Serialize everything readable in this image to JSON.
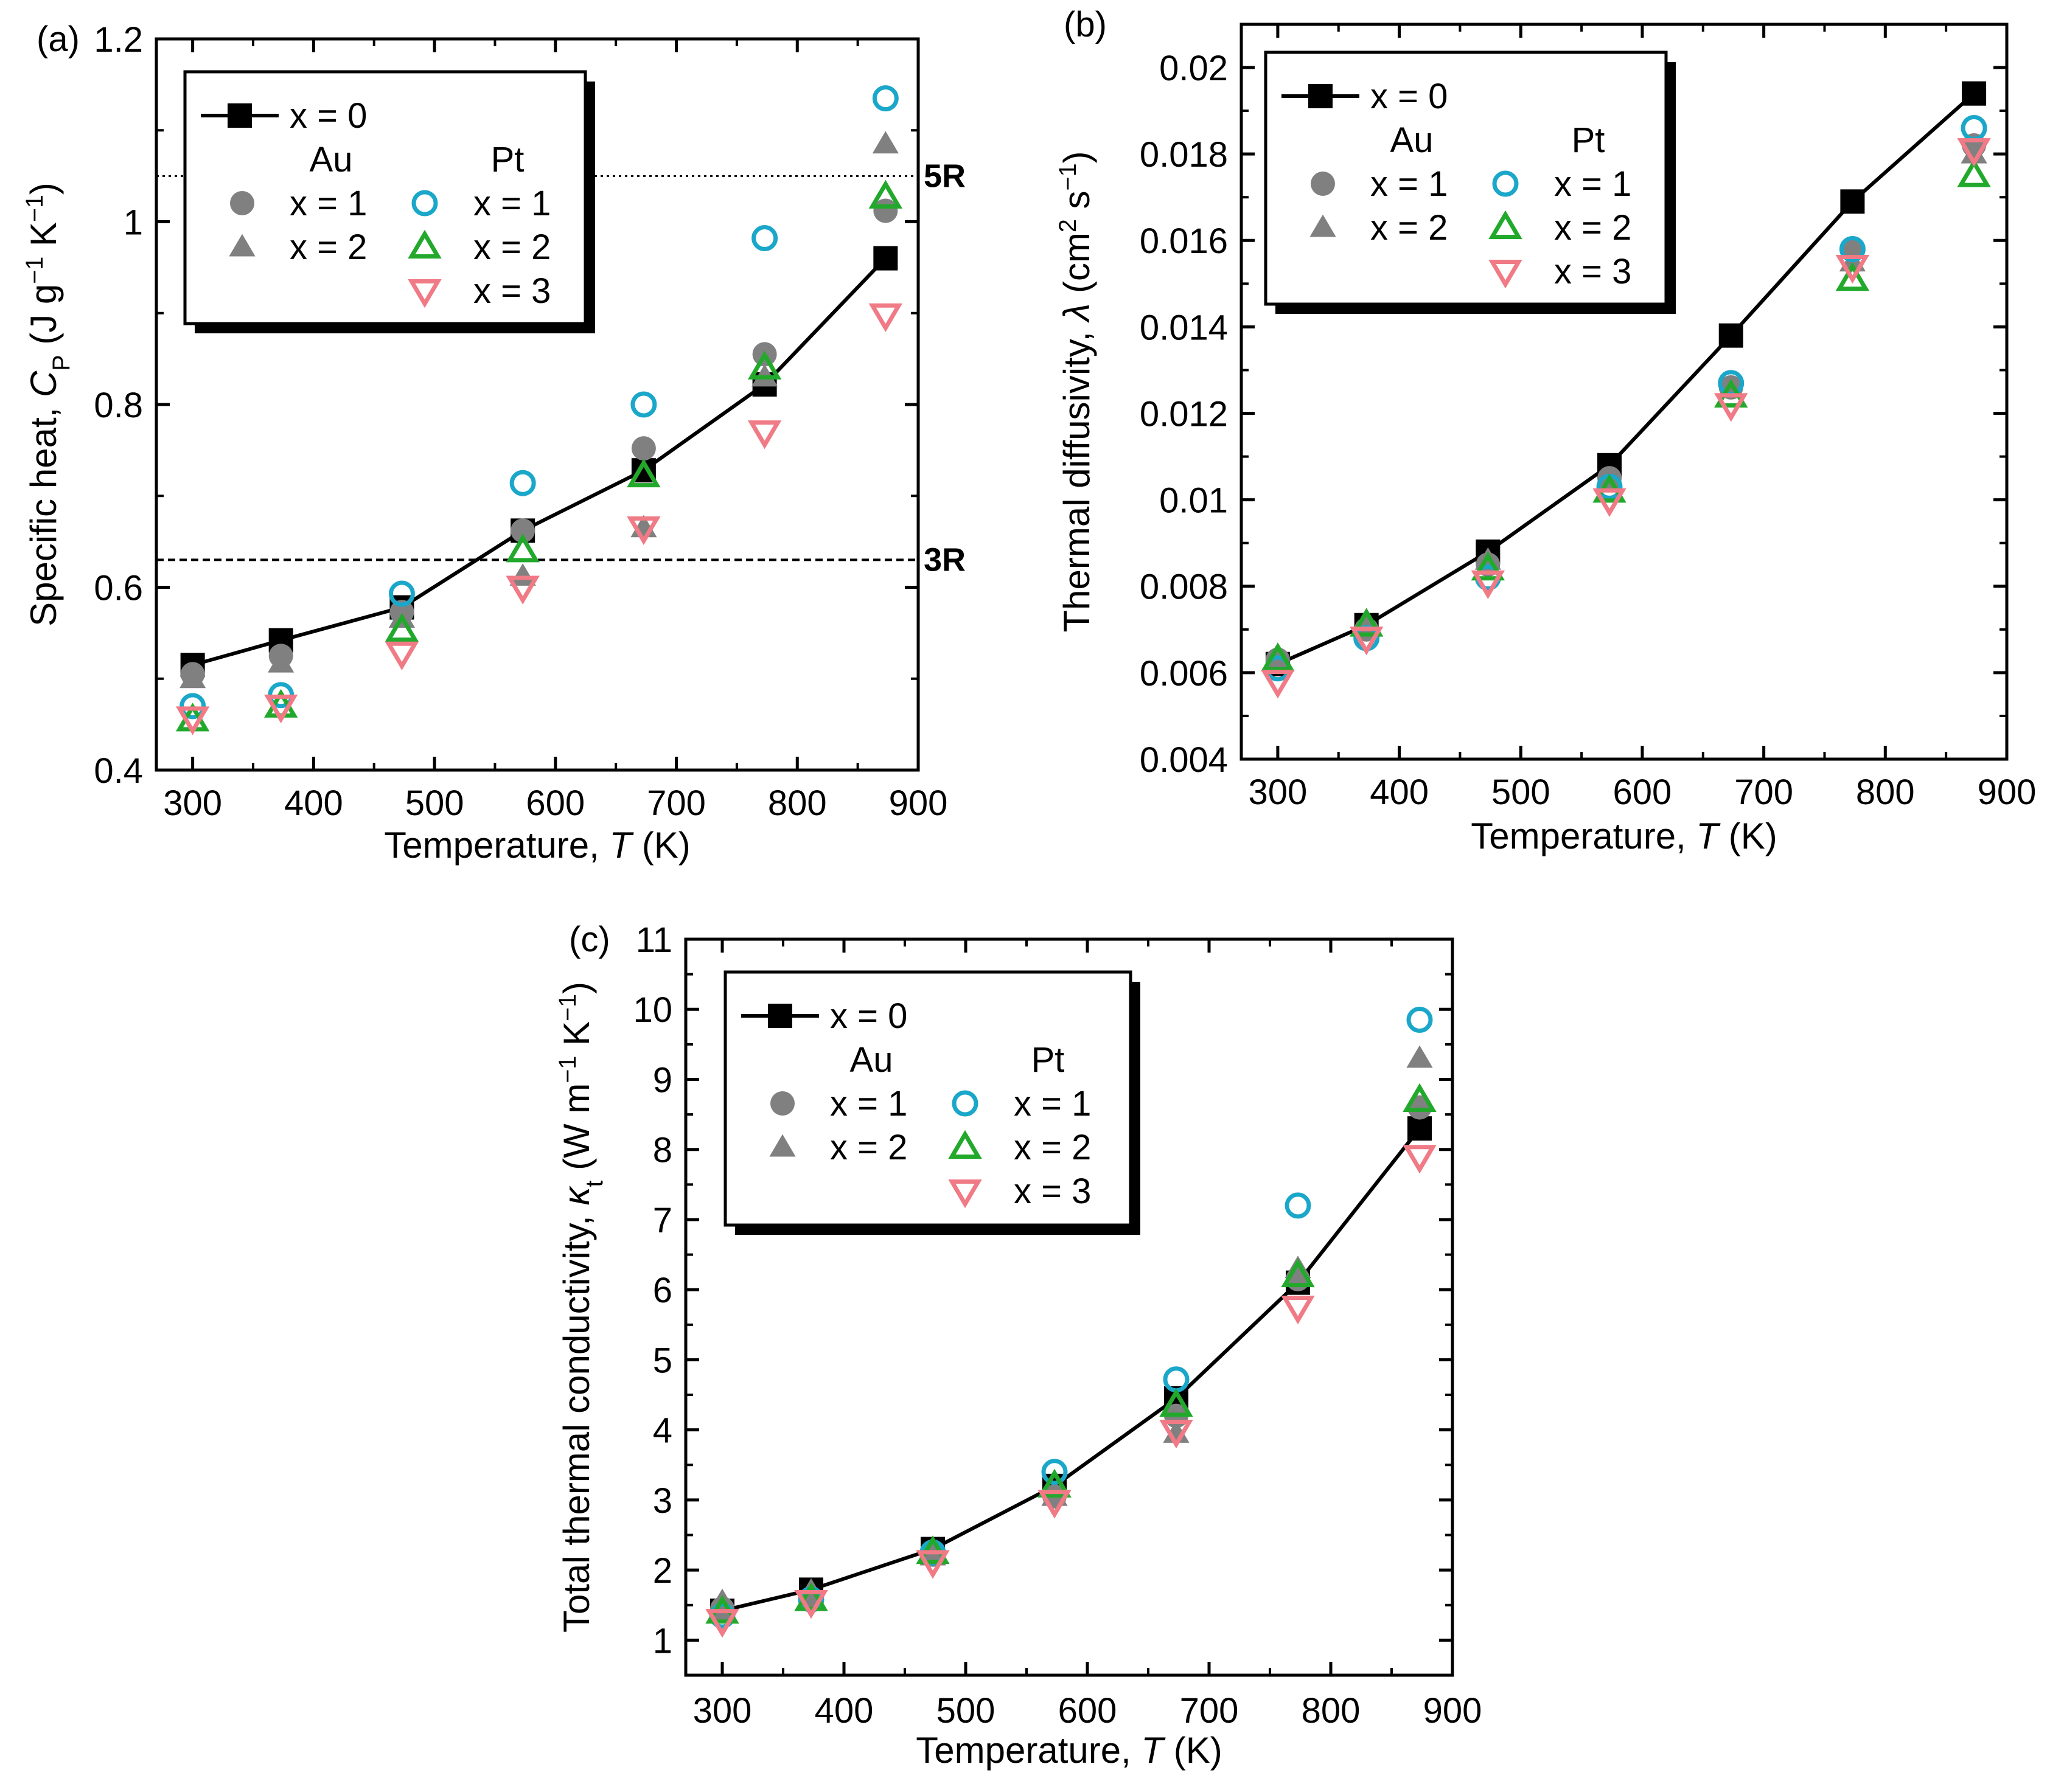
{
  "chart_data": [
    {
      "type": "scatter",
      "panel_label": "(a)",
      "xlabel_pre": "Temperature, ",
      "xlabel_var": "T",
      "xlabel_post": " (K)",
      "ylabel_pre": "Specific heat, ",
      "ylabel_var": "C",
      "ylabel_sub": "P",
      "ylabel_post": " (J g",
      "ylabel_sup1": "−1",
      "ylabel_mid": " K",
      "ylabel_sup2": "−1",
      "ylabel_end": ")",
      "xlim": [
        270,
        900
      ],
      "ylim": [
        0.4,
        1.2
      ],
      "xticks": [
        300,
        400,
        500,
        600,
        700,
        800,
        900
      ],
      "xtick_labels": [
        "300",
        "400",
        "500",
        "600",
        "700",
        "800",
        "900"
      ],
      "yticks": [
        0.4,
        0.6,
        0.8,
        1.0,
        1.2
      ],
      "ytick_labels": [
        "0.4",
        "0.6",
        "0.8",
        "1",
        "1.2"
      ],
      "reference_lines": [
        {
          "label": "5R",
          "y": 1.05,
          "style": "dotted"
        },
        {
          "label": "3R",
          "y": 0.63,
          "style": "dashed"
        }
      ],
      "legend": {
        "top_label": "x = 0",
        "group1": "Au",
        "group2": "Pt",
        "labels": [
          "x = 1",
          "x = 2",
          "x = 1",
          "x = 2",
          "x = 3"
        ],
        "placement": "top-left"
      },
      "x": [
        300,
        373,
        473,
        573,
        673,
        773,
        873
      ],
      "series": [
        {
          "name": "x = 0",
          "marker": "square-filled",
          "color": "#000000",
          "line": true,
          "values": [
            0.515,
            0.542,
            0.578,
            0.662,
            0.728,
            0.822,
            0.96
          ]
        },
        {
          "name": "Au x = 1",
          "marker": "circle-filled",
          "color": "#808080",
          "values": [
            0.505,
            0.525,
            0.573,
            0.662,
            0.752,
            0.855,
            1.012
          ]
        },
        {
          "name": "Au x = 2",
          "marker": "triangle-up-filled",
          "color": "#808080",
          "values": [
            0.5,
            0.517,
            0.566,
            0.612,
            0.665,
            0.83,
            1.085
          ]
        },
        {
          "name": "Pt x = 1",
          "marker": "circle-open",
          "color": "#1aa7c9",
          "values": [
            0.47,
            0.482,
            0.593,
            0.714,
            0.8,
            0.982,
            1.135
          ]
        },
        {
          "name": "Pt x = 2",
          "marker": "triangle-up-open",
          "color": "#22a92c",
          "values": [
            0.455,
            0.47,
            0.553,
            0.64,
            0.722,
            0.84,
            1.027
          ]
        },
        {
          "name": "Pt x = 3",
          "marker": "triangle-down-open",
          "color": "#f07a85",
          "values": [
            0.457,
            0.47,
            0.528,
            0.6,
            0.665,
            0.77,
            0.898
          ]
        }
      ]
    },
    {
      "type": "scatter",
      "panel_label": "(b)",
      "xlabel_pre": "Temperature, ",
      "xlabel_var": "T",
      "xlabel_post": " (K)",
      "ylabel_pre": "Thermal diffusivity, ",
      "ylabel_var": "λ",
      "ylabel_post": " (cm",
      "ylabel_sup1": "2",
      "ylabel_mid": " s",
      "ylabel_sup2": "−1",
      "ylabel_end": ")",
      "xlim": [
        270,
        900
      ],
      "ylim": [
        0.004,
        0.021
      ],
      "xticks": [
        300,
        400,
        500,
        600,
        700,
        800,
        900
      ],
      "xtick_labels": [
        "300",
        "400",
        "500",
        "600",
        "700",
        "800",
        "900"
      ],
      "yticks": [
        0.004,
        0.006,
        0.008,
        0.01,
        0.012,
        0.014,
        0.016,
        0.018,
        0.02
      ],
      "ytick_labels": [
        "0.004",
        "0.006",
        "0.008",
        "0.01",
        "0.012",
        "0.014",
        "0.016",
        "0.018",
        "0.02"
      ],
      "legend": {
        "top_label": "x = 0",
        "group1": "Au",
        "group2": "Pt",
        "labels": [
          "x = 1",
          "x = 2",
          "x = 1",
          "x = 2",
          "x = 3"
        ],
        "placement": "top-left"
      },
      "x": [
        300,
        373,
        473,
        573,
        673,
        773,
        873
      ],
      "series": [
        {
          "name": "x = 0",
          "marker": "square-filled",
          "color": "#000000",
          "line": true,
          "values": [
            0.0062,
            0.0071,
            0.0088,
            0.0108,
            0.0138,
            0.0169,
            0.0194
          ]
        },
        {
          "name": "Au x = 1",
          "marker": "circle-filled",
          "color": "#808080",
          "values": [
            0.0063,
            0.007,
            0.0085,
            0.0105,
            0.0126,
            0.0158,
            0.0182
          ]
        },
        {
          "name": "Au x = 2",
          "marker": "triangle-up-filled",
          "color": "#808080",
          "values": [
            0.0064,
            0.0072,
            0.0086,
            0.0104,
            0.0126,
            0.0155,
            0.018
          ]
        },
        {
          "name": "Pt x = 1",
          "marker": "circle-open",
          "color": "#1aa7c9",
          "values": [
            0.0061,
            0.0068,
            0.0082,
            0.0103,
            0.0127,
            0.0158,
            0.0186
          ]
        },
        {
          "name": "Pt x = 2",
          "marker": "triangle-up-open",
          "color": "#22a92c",
          "values": [
            0.0063,
            0.0071,
            0.0084,
            0.0102,
            0.0124,
            0.0151,
            0.0175
          ]
        },
        {
          "name": "Pt x = 3",
          "marker": "triangle-down-open",
          "color": "#f07a85",
          "values": [
            0.0058,
            0.0068,
            0.0081,
            0.01,
            0.0122,
            0.0154,
            0.0181
          ]
        }
      ]
    },
    {
      "type": "scatter",
      "panel_label": "(c)",
      "xlabel_pre": "Temperature, ",
      "xlabel_var": "T",
      "xlabel_post": " (K)",
      "ylabel_pre": "Total thermal conductivity, ",
      "ylabel_var": "κ",
      "ylabel_sub": "t",
      "ylabel_post": " (W m",
      "ylabel_sup1": "−1",
      "ylabel_mid": " K",
      "ylabel_sup2": "−1",
      "ylabel_end": ")",
      "xlim": [
        270,
        900
      ],
      "ylim": [
        0.5,
        11
      ],
      "xticks": [
        300,
        400,
        500,
        600,
        700,
        800,
        900
      ],
      "xtick_labels": [
        "300",
        "400",
        "500",
        "600",
        "700",
        "800",
        "900"
      ],
      "yticks": [
        1,
        2,
        3,
        4,
        5,
        6,
        7,
        8,
        9,
        10,
        11
      ],
      "ytick_labels": [
        "1",
        "2",
        "3",
        "4",
        "5",
        "6",
        "7",
        "8",
        "9",
        "10",
        "11"
      ],
      "legend": {
        "top_label": "x = 0",
        "group1": "Au",
        "group2": "Pt",
        "labels": [
          "x = 1",
          "x = 2",
          "x = 1",
          "x = 2",
          "x = 3"
        ],
        "placement": "top-left"
      },
      "x": [
        300,
        373,
        473,
        573,
        673,
        773,
        873
      ],
      "series": [
        {
          "name": "x = 0",
          "marker": "square-filled",
          "color": "#000000",
          "line": true,
          "values": [
            1.42,
            1.72,
            2.3,
            3.2,
            4.45,
            6.1,
            8.3
          ]
        },
        {
          "name": "Au x = 1",
          "marker": "circle-filled",
          "color": "#808080",
          "values": [
            1.45,
            1.6,
            2.22,
            3.05,
            4.2,
            6.15,
            8.6
          ]
        },
        {
          "name": "Au x = 2",
          "marker": "triangle-up-filled",
          "color": "#808080",
          "values": [
            1.55,
            1.7,
            2.2,
            3.05,
            3.95,
            6.3,
            9.3
          ]
        },
        {
          "name": "Pt x = 1",
          "marker": "circle-open",
          "color": "#1aa7c9",
          "values": [
            1.35,
            1.58,
            2.25,
            3.4,
            4.72,
            7.2,
            9.85
          ]
        },
        {
          "name": "Pt x = 2",
          "marker": "triangle-up-open",
          "color": "#22a92c",
          "values": [
            1.4,
            1.58,
            2.25,
            3.2,
            4.35,
            6.2,
            8.7
          ]
        },
        {
          "name": "Pt x = 3",
          "marker": "triangle-down-open",
          "color": "#f07a85",
          "values": [
            1.28,
            1.55,
            2.12,
            2.98,
            3.98,
            5.75,
            7.9
          ]
        }
      ]
    }
  ]
}
